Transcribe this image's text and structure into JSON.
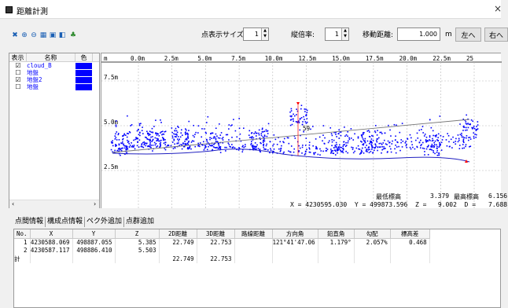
{
  "window": {
    "title": "距離計測",
    "close_glyph": "×"
  },
  "toolbar": {
    "icons": [
      "move-icon",
      "zoom-in-icon",
      "zoom-out-icon",
      "fit-view-icon",
      "grid-icon",
      "export-icon",
      "settings-icon"
    ],
    "point_size_label": "点表示サイズ:",
    "point_size_value": "1",
    "vertical_scale_label": "縦倍率:",
    "vertical_scale_value": "1",
    "move_distance_label": "移動距離:",
    "move_distance_value": "1.000",
    "move_distance_unit": "m",
    "left_button": "左へ",
    "right_button": "右へ"
  },
  "layers": {
    "headers": [
      "表示",
      "名称",
      "色"
    ],
    "items": [
      {
        "name": "cloud_B",
        "checked": true,
        "color": "#0000ff"
      },
      {
        "name": "地盤",
        "checked": false,
        "color": "#0000ff"
      },
      {
        "name": "地盤2",
        "checked": true,
        "color": "#0000ff"
      },
      {
        "name": "地盤",
        "checked": false,
        "color": "#0000ff"
      }
    ]
  },
  "profile": {
    "x_unit": "m",
    "x_ticks": [
      "0.0m",
      "2.5m",
      "5.0m",
      "7.5m",
      "10.0m",
      "12.5m",
      "15.0m",
      "17.5m",
      "20.0m",
      "22.5m",
      "25"
    ],
    "y_ticks": [
      "7.5m",
      "5.0m",
      "2.5m"
    ],
    "point_label": "59",
    "min_elev_label": "最低標高",
    "min_elev_value": "3.379",
    "max_elev_label": "最高標高",
    "max_elev_value": "6.156",
    "coords_line": "X = 4230595.030  Y = 499873.596  Z =   9.002  D =",
    "d_value": "7.688",
    "point_color": "#0000ff",
    "marker_color": "#ff0000"
  },
  "bottom_tabs": [
    "点間情報",
    "構成点情報",
    "ペク外追加",
    "点群追加"
  ],
  "table": {
    "headers": [
      "No.",
      "X",
      "Y",
      "Z",
      "2D距離",
      "3D距離",
      "路線距離",
      "方向角",
      "鉛直角",
      "勾配",
      "標高差"
    ],
    "rows": [
      [
        "1",
        "4230588.069",
        "498887.055",
        "5.385",
        "22.749",
        "22.753",
        "",
        "121°41'47.06",
        "1.179°",
        "2.057%",
        "0.468"
      ],
      [
        "2",
        "4230587.117",
        "498886.410",
        "5.503",
        "",
        "",
        "",
        "",
        "",
        "",
        ""
      ],
      [
        "計",
        "",
        "",
        "",
        "22.749",
        "22.753",
        "",
        "",
        "",
        "",
        ""
      ]
    ]
  }
}
